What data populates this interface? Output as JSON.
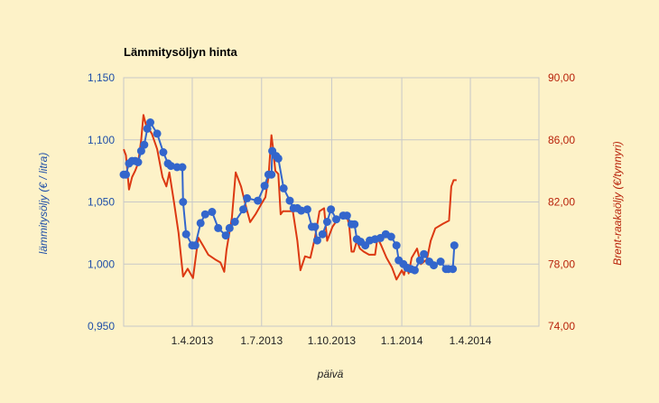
{
  "chart_data": {
    "type": "line",
    "title": "Lämmitysöljyn hinta",
    "xlabel": "päivä",
    "ylabel_left": "lämmitysöljy (€ / litra)",
    "ylabel_right": "Brent-raakaöljy (€/tynnyri)",
    "x_ticks": [
      "1.4.2013",
      "1.7.2013",
      "1.10.2013",
      "1.1.2014",
      "1.4.2014"
    ],
    "x_tick_dates": [
      "2013-04-01",
      "2013-07-01",
      "2013-10-01",
      "2014-01-01",
      "2014-04-01"
    ],
    "xlim": [
      "2013-01-01",
      "2014-06-30"
    ],
    "y_left_ticks": [
      "0,950",
      "1,000",
      "1,050",
      "1,100",
      "1,150"
    ],
    "y_left_lim": [
      0.95,
      1.15
    ],
    "y_right_ticks": [
      "74,00",
      "78,00",
      "82,00",
      "86,00",
      "90,00"
    ],
    "y_right_lim": [
      74,
      90
    ],
    "grid": true,
    "colors": {
      "heating_oil": "#3366cc",
      "brent": "#dc3912"
    },
    "series": [
      {
        "axis": "left",
        "marker": "circle",
        "points": [
          [
            "2013-01-01",
            1.072
          ],
          [
            "2013-01-04",
            1.072
          ],
          [
            "2013-01-08",
            1.081
          ],
          [
            "2013-01-12",
            1.083
          ],
          [
            "2013-01-16",
            1.083
          ],
          [
            "2013-01-20",
            1.082
          ],
          [
            "2013-01-24",
            1.091
          ],
          [
            "2013-01-28",
            1.096
          ],
          [
            "2013-02-01",
            1.109
          ],
          [
            "2013-02-05",
            1.114
          ],
          [
            "2013-02-14",
            1.105
          ],
          [
            "2013-02-22",
            1.09
          ],
          [
            "2013-02-28",
            1.081
          ],
          [
            "2013-03-04",
            1.079
          ],
          [
            "2013-03-12",
            1.078
          ],
          [
            "2013-03-19",
            1.078
          ],
          [
            "2013-03-20",
            1.05
          ],
          [
            "2013-03-24",
            1.024
          ],
          [
            "2013-04-01",
            1.015
          ],
          [
            "2013-04-05",
            1.015
          ],
          [
            "2013-04-12",
            1.033
          ],
          [
            "2013-04-18",
            1.04
          ],
          [
            "2013-04-27",
            1.042
          ],
          [
            "2013-05-05",
            1.029
          ],
          [
            "2013-05-15",
            1.023
          ],
          [
            "2013-05-20",
            1.029
          ],
          [
            "2013-05-27",
            1.034
          ],
          [
            "2013-06-07",
            1.044
          ],
          [
            "2013-06-12",
            1.053
          ],
          [
            "2013-06-26",
            1.051
          ],
          [
            "2013-07-05",
            1.063
          ],
          [
            "2013-07-10",
            1.072
          ],
          [
            "2013-07-14",
            1.072
          ],
          [
            "2013-07-15",
            1.091
          ],
          [
            "2013-07-20",
            1.087
          ],
          [
            "2013-07-23",
            1.085
          ],
          [
            "2013-07-30",
            1.061
          ],
          [
            "2013-08-07",
            1.051
          ],
          [
            "2013-08-12",
            1.045
          ],
          [
            "2013-08-17",
            1.045
          ],
          [
            "2013-08-22",
            1.043
          ],
          [
            "2013-08-30",
            1.044
          ],
          [
            "2013-09-05",
            1.03
          ],
          [
            "2013-09-09",
            1.03
          ],
          [
            "2013-09-12",
            1.019
          ],
          [
            "2013-09-19",
            1.024
          ],
          [
            "2013-09-25",
            1.034
          ],
          [
            "2013-09-30",
            1.044
          ],
          [
            "2013-10-07",
            1.036
          ],
          [
            "2013-10-16",
            1.039
          ],
          [
            "2013-10-21",
            1.039
          ],
          [
            "2013-10-27",
            1.032
          ],
          [
            "2013-10-31",
            1.032
          ],
          [
            "2013-11-03",
            1.02
          ],
          [
            "2013-11-08",
            1.018
          ],
          [
            "2013-11-14",
            1.015
          ],
          [
            "2013-11-20",
            1.019
          ],
          [
            "2013-11-27",
            1.02
          ],
          [
            "2013-12-04",
            1.021
          ],
          [
            "2013-12-11",
            1.024
          ],
          [
            "2013-12-18",
            1.022
          ],
          [
            "2013-12-25",
            1.015
          ],
          [
            "2013-12-28",
            1.003
          ],
          [
            "2014-01-03",
            1.0
          ],
          [
            "2014-01-08",
            0.997
          ],
          [
            "2014-01-13",
            0.996
          ],
          [
            "2014-01-18",
            0.995
          ],
          [
            "2014-01-25",
            1.003
          ],
          [
            "2014-01-30",
            1.008
          ],
          [
            "2014-02-06",
            1.002
          ],
          [
            "2014-02-12",
            0.999
          ],
          [
            "2014-02-21",
            1.002
          ],
          [
            "2014-02-28",
            0.996
          ],
          [
            "2014-03-03",
            0.996
          ],
          [
            "2014-03-09",
            0.996
          ],
          [
            "2014-03-11",
            1.015
          ]
        ]
      },
      {
        "axis": "right",
        "marker": "none",
        "points": [
          [
            "2013-01-01",
            85.4
          ],
          [
            "2013-01-04",
            85.0
          ],
          [
            "2013-01-08",
            82.8
          ],
          [
            "2013-01-12",
            83.6
          ],
          [
            "2013-01-16",
            84.0
          ],
          [
            "2013-01-20",
            84.5
          ],
          [
            "2013-01-24",
            86.0
          ],
          [
            "2013-01-27",
            87.6
          ],
          [
            "2013-01-30",
            87.0
          ],
          [
            "2013-02-07",
            86.4
          ],
          [
            "2013-02-14",
            85.4
          ],
          [
            "2013-02-21",
            83.6
          ],
          [
            "2013-02-26",
            83.0
          ],
          [
            "2013-03-02",
            83.9
          ],
          [
            "2013-03-08",
            82.0
          ],
          [
            "2013-03-14",
            80.0
          ],
          [
            "2013-03-20",
            77.2
          ],
          [
            "2013-03-26",
            77.7
          ],
          [
            "2013-04-02",
            77.1
          ],
          [
            "2013-04-09",
            79.7
          ],
          [
            "2013-04-15",
            79.2
          ],
          [
            "2013-04-22",
            78.6
          ],
          [
            "2013-05-01",
            78.3
          ],
          [
            "2013-05-08",
            78.1
          ],
          [
            "2013-05-13",
            77.5
          ],
          [
            "2013-05-16",
            78.9
          ],
          [
            "2013-05-23",
            81.0
          ],
          [
            "2013-05-28",
            83.9
          ],
          [
            "2013-06-04",
            83.0
          ],
          [
            "2013-06-11",
            81.6
          ],
          [
            "2013-06-16",
            80.7
          ],
          [
            "2013-06-23",
            81.2
          ],
          [
            "2013-07-01",
            81.9
          ],
          [
            "2013-07-06",
            82.3
          ],
          [
            "2013-07-10",
            83.6
          ],
          [
            "2013-07-14",
            86.3
          ],
          [
            "2013-07-16",
            85.5
          ],
          [
            "2013-07-19",
            84.0
          ],
          [
            "2013-07-23",
            83.8
          ],
          [
            "2013-07-26",
            81.2
          ],
          [
            "2013-07-29",
            81.4
          ],
          [
            "2013-08-11",
            81.4
          ],
          [
            "2013-08-17",
            79.5
          ],
          [
            "2013-08-21",
            77.6
          ],
          [
            "2013-08-27",
            78.5
          ],
          [
            "2013-09-03",
            78.4
          ],
          [
            "2013-09-09",
            79.7
          ],
          [
            "2013-09-15",
            81.4
          ],
          [
            "2013-09-21",
            81.6
          ],
          [
            "2013-09-25",
            79.5
          ],
          [
            "2013-10-02",
            80.4
          ],
          [
            "2013-10-09",
            80.9
          ],
          [
            "2013-10-14",
            81.1
          ],
          [
            "2013-10-21",
            81.1
          ],
          [
            "2013-10-24",
            80.5
          ],
          [
            "2013-10-27",
            78.8
          ],
          [
            "2013-10-30",
            78.8
          ],
          [
            "2013-11-03",
            79.5
          ],
          [
            "2013-11-07",
            79.0
          ],
          [
            "2013-11-12",
            78.8
          ],
          [
            "2013-11-19",
            78.6
          ],
          [
            "2013-11-27",
            78.6
          ],
          [
            "2013-11-30",
            79.7
          ],
          [
            "2013-12-05",
            79.2
          ],
          [
            "2013-12-12",
            78.4
          ],
          [
            "2013-12-19",
            77.8
          ],
          [
            "2013-12-25",
            77.0
          ],
          [
            "2014-01-01",
            77.6
          ],
          [
            "2014-01-04",
            77.3
          ],
          [
            "2014-01-07",
            78.0
          ],
          [
            "2014-01-10",
            77.4
          ],
          [
            "2014-01-14",
            78.4
          ],
          [
            "2014-01-21",
            79.0
          ],
          [
            "2014-01-26",
            78.0
          ],
          [
            "2014-02-03",
            78.3
          ],
          [
            "2014-02-08",
            79.5
          ],
          [
            "2014-02-14",
            80.3
          ],
          [
            "2014-02-24",
            80.6
          ],
          [
            "2014-03-04",
            80.8
          ],
          [
            "2014-03-07",
            83.0
          ],
          [
            "2014-03-10",
            83.4
          ],
          [
            "2014-03-14",
            83.4
          ]
        ]
      }
    ]
  }
}
